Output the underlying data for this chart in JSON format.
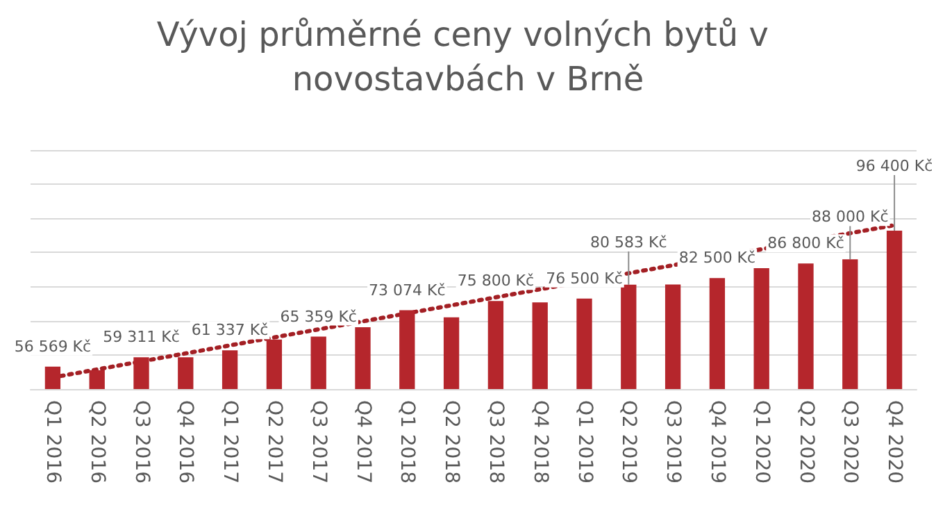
{
  "chart_data": {
    "type": "bar",
    "title": "Vývoj průměrné ceny volných bytů v novostavbách v Brně",
    "categories": [
      "Q1 2016",
      "Q2 2016",
      "Q3 2016",
      "Q4 2016",
      "Q1 2017",
      "Q2 2017",
      "Q3 2017",
      "Q4 2017",
      "Q1 2018",
      "Q2 2018",
      "Q3 2018",
      "Q4 2018",
      "Q1 2019",
      "Q2 2019",
      "Q3 2019",
      "Q4 2019",
      "Q1 2020",
      "Q2 2020",
      "Q3 2020",
      "Q4 2020"
    ],
    "series": [
      {
        "color": "#b5262c",
        "values": [
          56569,
          55500,
          59311,
          59300,
          61337,
          64500,
          65359,
          68100,
          73074,
          71000,
          75800,
          75400,
          76500,
          80583,
          80600,
          82500,
          85400,
          86800,
          88000,
          96400
        ],
        "value_labels": [
          "56 569 Kč",
          null,
          "59 311 Kč",
          null,
          "61 337 Kč",
          null,
          "65 359 Kč",
          null,
          "73 074 Kč",
          null,
          "75 800 Kč",
          null,
          "76 500 Kč",
          "80 583 Kč",
          null,
          "82 500 Kč",
          null,
          "86 800 Kč",
          "88 000 Kč",
          "96 400 Kč"
        ]
      },
      {
        "type": "line",
        "color": "#a31f24",
        "line_style": "dotted",
        "marker": "none",
        "x": [
          "Q1 2016",
          "Q4 2020"
        ],
        "values": [
          53400,
          98000
        ]
      }
    ],
    "ylim": [
      50000,
      120000
    ],
    "yticks": [
      {
        "value": 50000,
        "label": null
      },
      {
        "value": 60000,
        "label": null
      },
      {
        "value": 70000,
        "label": null
      },
      {
        "value": 80000,
        "label": null
      },
      {
        "value": 90000,
        "label": null
      },
      {
        "value": 100000,
        "label": null
      },
      {
        "value": 110000,
        "label": null
      },
      {
        "value": 120000,
        "label": null
      }
    ],
    "tick_labels": "x",
    "grid": "y"
  }
}
